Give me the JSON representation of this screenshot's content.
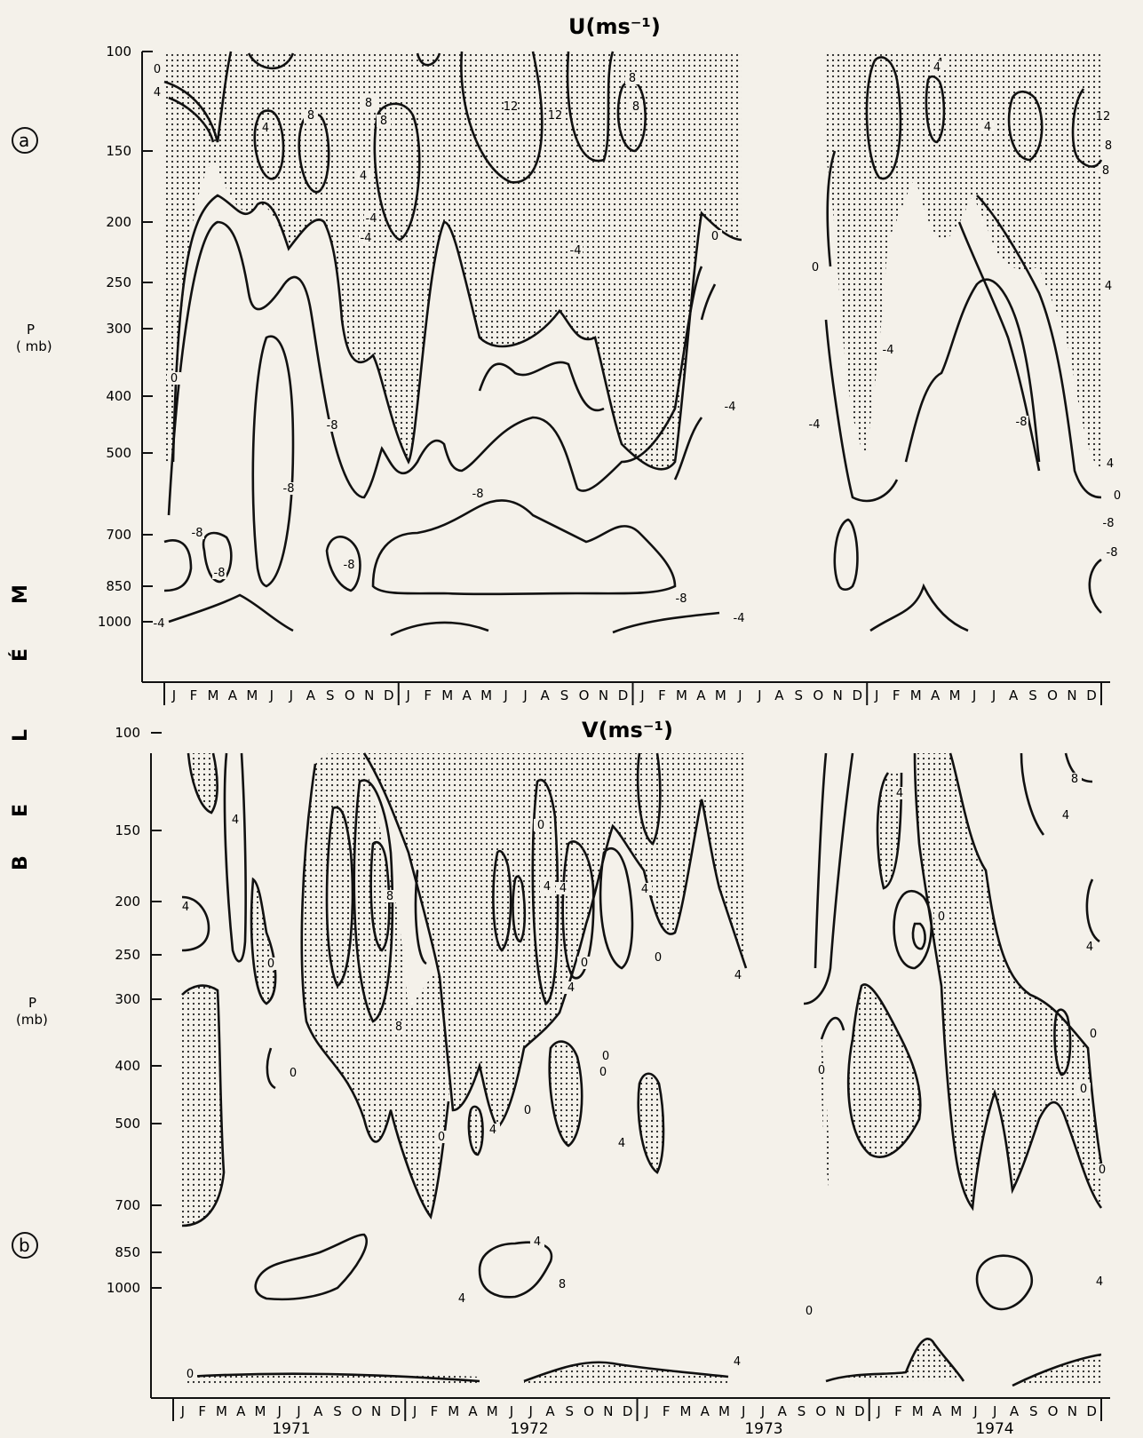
{
  "chart_data": [
    {
      "panel": "a",
      "type": "heatmap",
      "subtype": "contour",
      "title": "U(ms⁻¹)",
      "ylabel": "P\n(mb)",
      "y_ticks": [
        "100",
        "150",
        "200",
        "250",
        "300",
        "400",
        "500",
        "700",
        "850",
        "1000"
      ],
      "x_months": [
        "J",
        "F",
        "M",
        "A",
        "M",
        "J",
        "J",
        "A",
        "S",
        "O",
        "N",
        "D"
      ],
      "years": [
        "1971",
        "1972",
        "1973",
        "1974"
      ],
      "shading": "dotted = positive values",
      "contour_labels": [
        "0",
        "4",
        "4",
        "8",
        "8",
        "8",
        "12",
        "12",
        "8",
        "8",
        "4",
        "4",
        "0",
        "-4",
        "-4",
        "-4",
        "-8",
        "-8",
        "-8",
        "-8",
        "-8",
        "-8",
        "-4",
        "-4",
        "0",
        "4",
        "4",
        "8",
        "12",
        "8",
        "4",
        "0",
        "-4",
        "-4",
        "-8",
        "-8",
        "-8",
        "-8",
        "4",
        "0",
        "-4"
      ]
    },
    {
      "panel": "b",
      "type": "heatmap",
      "subtype": "contour",
      "title": "V(ms⁻¹)",
      "ylabel": "P\n(mb)",
      "y_ticks": [
        "100",
        "150",
        "200",
        "250",
        "300",
        "400",
        "500",
        "700",
        "850",
        "1000"
      ],
      "x_months": [
        "J",
        "F",
        "M",
        "A",
        "M",
        "J",
        "J",
        "A",
        "S",
        "O",
        "N",
        "D"
      ],
      "years": [
        "1971",
        "1972",
        "1973",
        "1974"
      ],
      "shading": "dotted = positive values",
      "contour_labels": [
        "4",
        "4",
        "0",
        "0",
        "4",
        "8",
        "8",
        "4",
        "4",
        "8",
        "4",
        "0",
        "4",
        "4",
        "0",
        "0",
        "4",
        "4",
        "0",
        "0",
        "0",
        "0",
        "4",
        "4",
        "0",
        "4",
        "4",
        "8",
        "0",
        "0",
        "0",
        "4",
        "0",
        "0",
        "4",
        "0"
      ]
    }
  ],
  "side_label": "BELÉM",
  "panel_letters": [
    "a",
    "b"
  ]
}
